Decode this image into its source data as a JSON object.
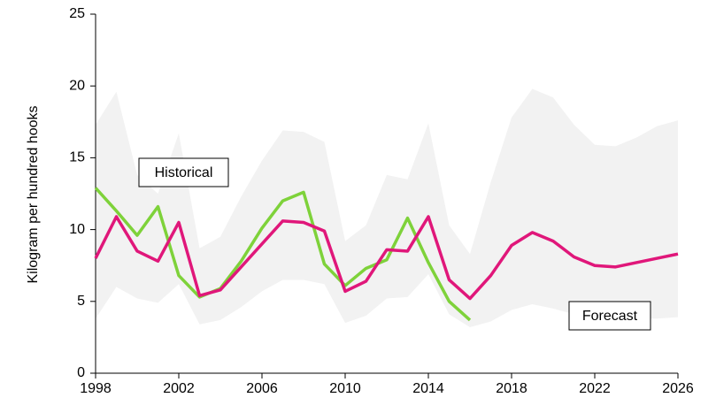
{
  "chart_data": {
    "type": "line",
    "y_label": "Kilogram per hundred hooks",
    "annotations": [
      "Historical",
      "Forecast"
    ],
    "x": [
      1998,
      1999,
      2000,
      2001,
      2002,
      2003,
      2004,
      2005,
      2006,
      2007,
      2008,
      2009,
      2010,
      2011,
      2012,
      2013,
      2014,
      2015,
      2016,
      2017,
      2018,
      2019,
      2020,
      2021,
      2022,
      2023,
      2024,
      2025,
      2026
    ],
    "band": {
      "color": "#f2f2f2",
      "upper": [
        17.3,
        19.6,
        13.8,
        12.5,
        16.7,
        8.7,
        9.5,
        12.3,
        14.8,
        16.9,
        16.8,
        16.1,
        9.2,
        10.3,
        13.8,
        13.5,
        17.4,
        10.3,
        8.3,
        13.3,
        17.8,
        19.8,
        19.2,
        17.3,
        15.9,
        15.8,
        16.4,
        17.2,
        17.6
      ],
      "lower": [
        3.8,
        6.0,
        5.2,
        4.9,
        6.2,
        3.4,
        3.7,
        4.6,
        5.7,
        6.5,
        6.5,
        6.2,
        3.5,
        4.0,
        5.2,
        5.3,
        6.9,
        4.1,
        3.2,
        3.6,
        4.4,
        4.8,
        4.5,
        4.1,
        3.9,
        3.8,
        3.8,
        3.8,
        3.9
      ]
    },
    "series": [
      {
        "color": "#7ed23a",
        "values": [
          12.9,
          11.3,
          9.6,
          11.6,
          6.8,
          5.3,
          5.9,
          7.8,
          10.1,
          12.0,
          12.6,
          7.6,
          6.1,
          7.3,
          7.9,
          10.8,
          7.7,
          5.0,
          3.7,
          null,
          null,
          null,
          null,
          null,
          null,
          null,
          null,
          null,
          null
        ]
      },
      {
        "color": "#e0177a",
        "values": [
          8.0,
          10.9,
          8.5,
          7.8,
          10.5,
          5.4,
          5.8,
          7.4,
          9.0,
          10.6,
          10.5,
          9.9,
          5.7,
          6.4,
          8.6,
          8.5,
          10.9,
          6.5,
          5.2,
          6.8,
          8.9,
          9.8,
          9.2,
          8.1,
          7.5,
          7.4,
          7.7,
          8.0,
          8.3
        ]
      }
    ],
    "xlim": [
      1998,
      2026
    ],
    "xticks": [
      1998,
      2002,
      2006,
      2010,
      2014,
      2018,
      2022,
      2026
    ],
    "ylim": [
      0,
      25
    ],
    "yticks": [
      0,
      5,
      10,
      15,
      20,
      25
    ]
  }
}
